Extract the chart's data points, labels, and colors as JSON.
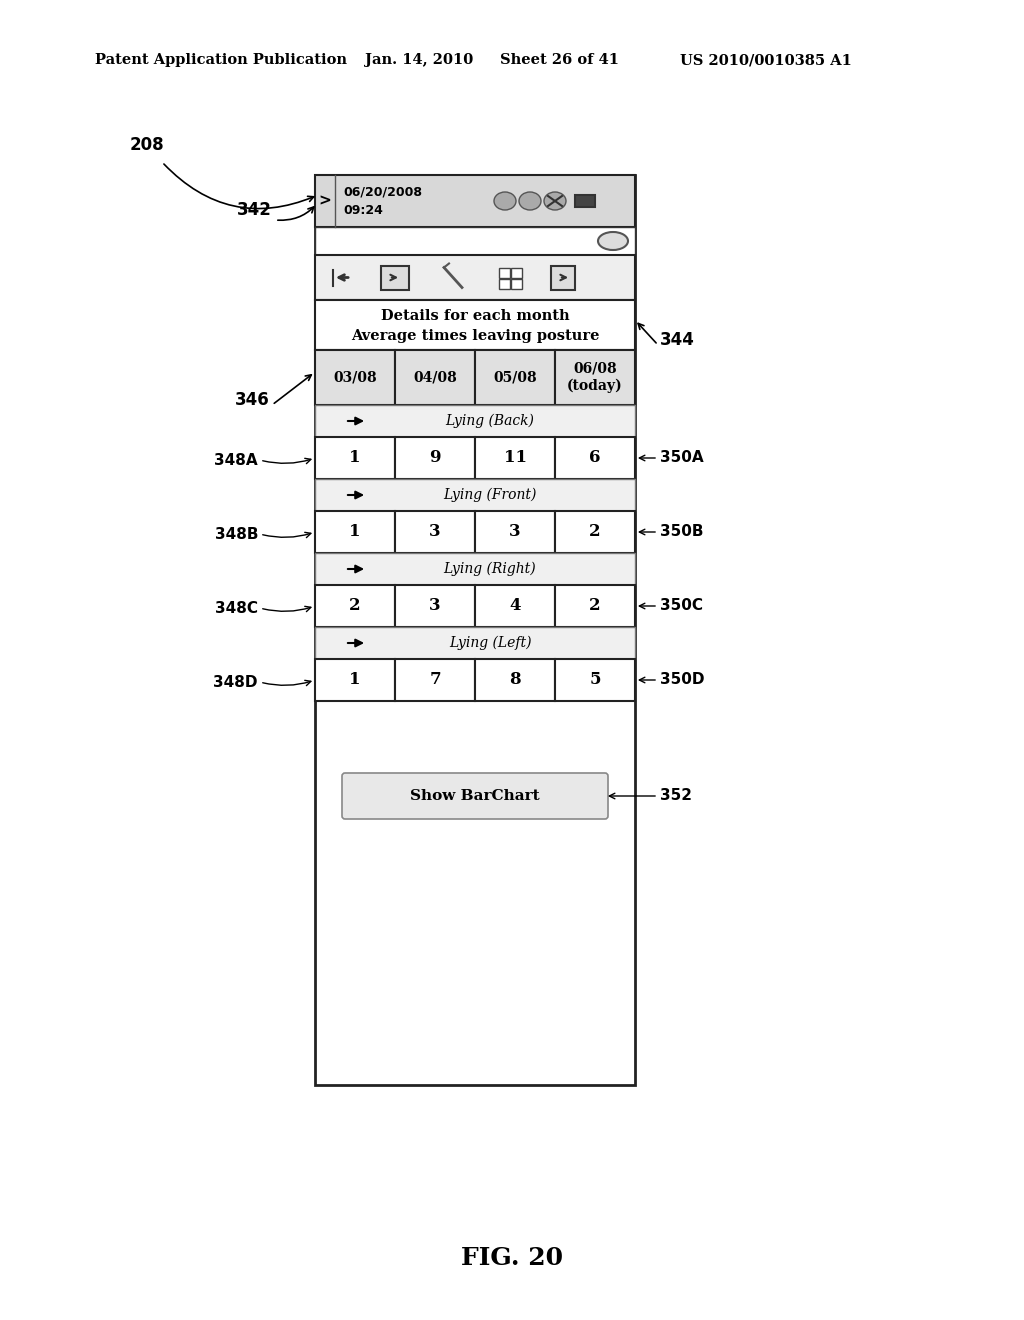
{
  "title": "FIG. 20",
  "header_text": "Patent Application Publication",
  "header_date": "Jan. 14, 2010",
  "header_sheet": "Sheet 26 of 41",
  "header_patent": "US 2010/0010385 A1",
  "label_208": "208",
  "label_342": "342",
  "label_344": "344",
  "label_346": "346",
  "label_348A": "348A",
  "label_348B": "348B",
  "label_348C": "348C",
  "label_348D": "348D",
  "label_350A": "350A",
  "label_350B": "350B",
  "label_350C": "350C",
  "label_350D": "350D",
  "label_352": "352",
  "status_text1": "06/20/2008",
  "status_text2": "09:24",
  "details_line1": "Details for each month",
  "details_line2": "Average times leaving posture",
  "months": [
    "03/08",
    "04/08",
    "05/08",
    "06/08\n(today)"
  ],
  "sections": [
    {
      "label": "Lying (Back)",
      "values": [
        "1",
        "9",
        "11",
        "6"
      ]
    },
    {
      "label": "Lying (Front)",
      "values": [
        "1",
        "3",
        "3",
        "2"
      ]
    },
    {
      "label": "Lying (Right)",
      "values": [
        "2",
        "3",
        "4",
        "2"
      ]
    },
    {
      "label": "Lying (Left)",
      "values": [
        "1",
        "7",
        "8",
        "5"
      ]
    }
  ],
  "button_text": "Show BarChart",
  "bg_color": "#ffffff"
}
